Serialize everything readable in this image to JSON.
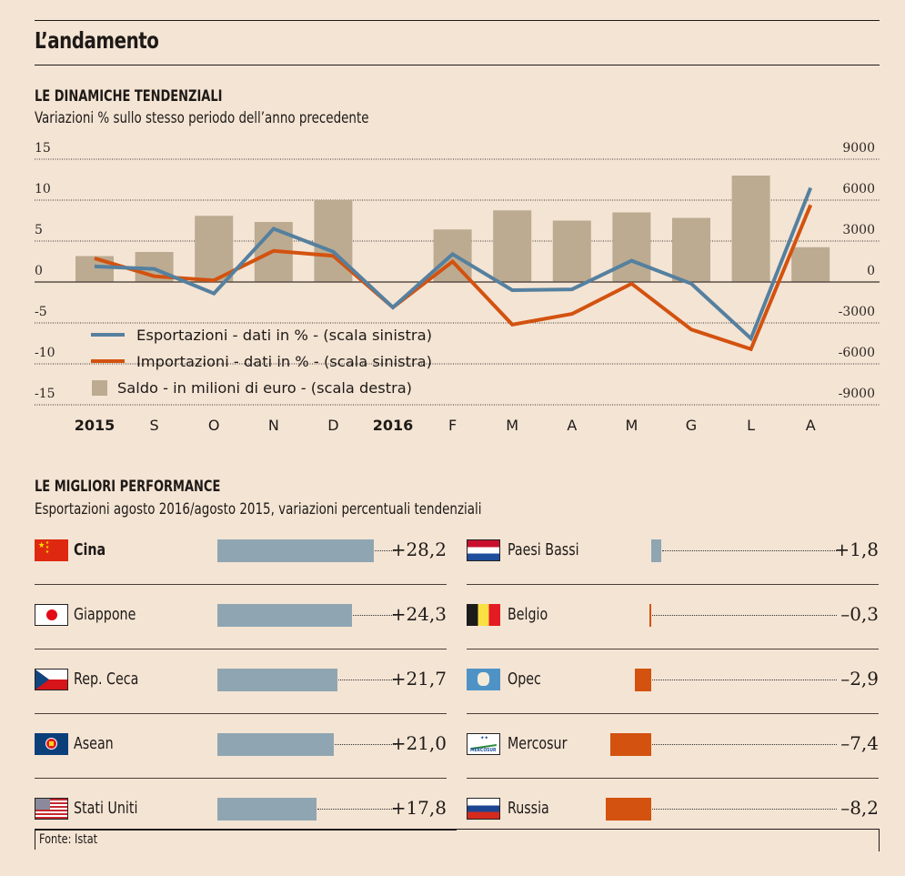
{
  "header": {
    "title": "L’andamento"
  },
  "section1": {
    "title": "LE DINAMICHE TENDENZIALI",
    "subtitle": "Variazioni % sullo stesso periodo dell’anno precedente"
  },
  "section2": {
    "title": "LE MIGLIORI PERFORMANCE",
    "subtitle": "Esportazioni agosto 2016/agosto 2015, variazioni percentuali tendenziali"
  },
  "footer": {
    "source": "Fonte: Istat"
  },
  "colors": {
    "background": "#f4e4d4",
    "exports": "#55809f",
    "imports": "#d3520f",
    "balance": "#bcab91",
    "positive_bar": "#8fa6b2",
    "negative_bar": "#d3520f"
  },
  "chart_data": [
    {
      "type": "bar+line",
      "title": "LE DINAMICHE TENDENZIALI",
      "subtitle": "Variazioni % sullo stesso periodo dell’anno precedente",
      "categories": [
        "2015",
        "S",
        "O",
        "N",
        "D",
        "2016",
        "F",
        "M",
        "A",
        "M",
        "G",
        "L",
        "A"
      ],
      "bold_categories": [
        "2015",
        "2016"
      ],
      "left_axis": {
        "ylim": [
          -15,
          15
        ],
        "ticks": [
          "15",
          "10",
          "5",
          "0",
          "-5",
          "-10",
          "-15"
        ],
        "tick_values": [
          15,
          10,
          5,
          0,
          -5,
          -10,
          -15
        ]
      },
      "right_axis": {
        "ylim": [
          -9000,
          9000
        ],
        "ticks": [
          "9000",
          "6000",
          "3000",
          "0",
          "-3000",
          "-6000",
          "-9000"
        ],
        "tick_values": [
          9000,
          6000,
          3000,
          0,
          -3000,
          -6000,
          -9000
        ]
      },
      "grid": true,
      "legend_position": "bottom-left",
      "series": [
        {
          "name": "Esportazioni - dati in % - (scala sinistra)",
          "kind": "line",
          "axis": "left",
          "color": "#55809f",
          "values": [
            1.9,
            1.6,
            -1.4,
            6.5,
            3.7,
            -3.1,
            3.4,
            -1.0,
            -0.9,
            2.6,
            -0.2,
            -6.9,
            11.5
          ]
        },
        {
          "name": "Importazioni - dati in % - (scala sinistra)",
          "kind": "line",
          "axis": "left",
          "color": "#d3520f",
          "values": [
            2.9,
            0.7,
            0.2,
            3.8,
            3.2,
            -3.1,
            2.5,
            -5.2,
            -3.9,
            -0.2,
            -5.8,
            -8.2,
            9.4
          ]
        },
        {
          "name": "Saldo - in milioni di euro - (scala destra)",
          "kind": "bar",
          "axis": "right",
          "color": "#bcab91",
          "values": [
            1900,
            2200,
            4850,
            4400,
            6000,
            null,
            3850,
            5250,
            4500,
            5100,
            4700,
            7800,
            2550
          ]
        }
      ]
    },
    {
      "type": "bar",
      "orientation": "horizontal",
      "title": "LE MIGLIORI PERFORMANCE",
      "subtitle": "Esportazioni agosto 2016/agosto 2015, variazioni percentuali tendenziali",
      "columns": [
        [
          {
            "label": "Cina",
            "value": 28.2,
            "display": "+28,2",
            "flag": "china-flag",
            "bold": true
          },
          {
            "label": "Giappone",
            "value": 24.3,
            "display": "+24,3",
            "flag": "japan-flag"
          },
          {
            "label": "Rep. Ceca",
            "value": 21.7,
            "display": "+21,7",
            "flag": "czech-flag"
          },
          {
            "label": "Asean",
            "value": 21.0,
            "display": "+21,0",
            "flag": "asean-flag"
          },
          {
            "label": "Stati Uniti",
            "value": 17.8,
            "display": "+17,8",
            "flag": "usa-flag"
          }
        ],
        [
          {
            "label": "Paesi Bassi",
            "value": 1.8,
            "display": "+1,8",
            "flag": "netherlands-flag"
          },
          {
            "label": "Belgio",
            "value": -0.3,
            "display": "–0,3",
            "flag": "belgium-flag"
          },
          {
            "label": "Opec",
            "value": -2.9,
            "display": "–2,9",
            "flag": "opec-flag"
          },
          {
            "label": "Mercosur",
            "value": -7.4,
            "display": "–7,4",
            "flag": "mercosur-flag"
          },
          {
            "label": "Russia",
            "value": -8.2,
            "display": "–8,2",
            "flag": "russia-flag"
          }
        ]
      ]
    }
  ]
}
